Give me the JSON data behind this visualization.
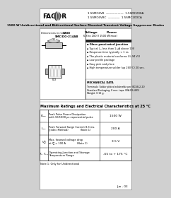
{
  "bg_color": "#d0d0d0",
  "page_bg": "#ffffff",
  "title_text": "1500 W Unidirectional and Bidirectional Surface Mounted Transient Voltage Suppressor Diodes",
  "company": "FAGOR",
  "part_numbers_top": "1.5SMC6V8  ——————  1.5SMC200A",
  "part_numbers_bot": "1.5SMC6V8C  ————  1.5SMC200CA",
  "case_label": "CASE\nSMC/DO-214AB",
  "voltage_label": "Voltage",
  "voltage_range": "6.8 to 200 V",
  "power_label": "Power",
  "power_range": "1500 W(max)",
  "features": [
    "Glass passivated junction",
    "Typical Iₚₚ less than 1 μA above 10V",
    "Response time typically < 1 ns",
    "The plastic material conforms UL-94 V-0",
    "Low profile package",
    "Easy pick and place",
    "High temperature solder (up 260°C) 20 sec."
  ],
  "mech_title": "MECHANICAL DATA",
  "mech_text": "Terminals: Solder plated solderable per IEC68-2-20\nStandard Packaging: 8 mm. tape (EIA-RS-481)\nWeight: 0.12 g.",
  "table_title": "Maximum Ratings and Electrical Characteristics at 25 °C",
  "rows": [
    {
      "symbol": "Pₚₚₚ",
      "desc": "Peak Pulse Power Dissipation\nwith 10/1000 μs exponential pulse",
      "value": "1500 W"
    },
    {
      "symbol": "Iₚₚₚ",
      "desc": "Peak Forward Surge Current 8.3 ms.\n(Jedec Method)               (Note 1)",
      "value": "200 A"
    },
    {
      "symbol": "V₝",
      "desc": "Max. forward voltage drop\nat I₝ = 100 A              (Note 1)",
      "value": "3.5 V"
    },
    {
      "symbol": "Tⱼ, Tₜₛₜ",
      "desc": "Operating Junction and Storage\nTemperature Range",
      "value": "-65 to + 175 °C"
    }
  ],
  "note": "Note 1: Only for Unidirectional",
  "footer": "Jun - 03"
}
